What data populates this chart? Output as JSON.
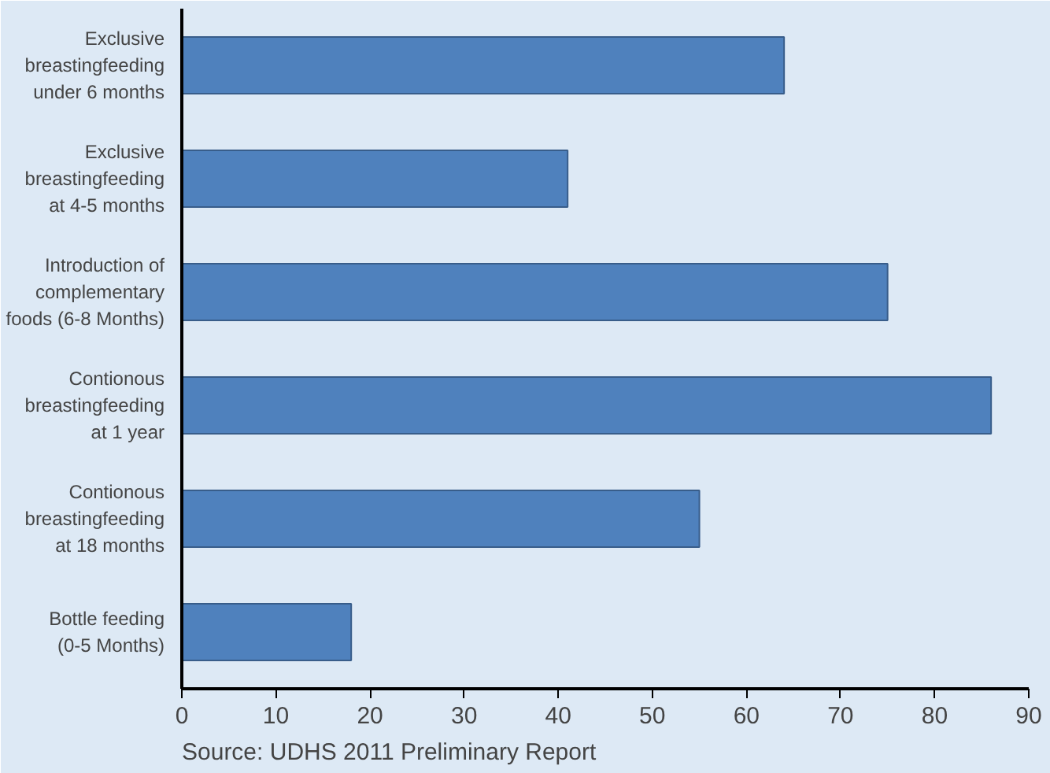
{
  "chart_data": {
    "type": "bar",
    "orientation": "horizontal",
    "categories": [
      "Exclusive\nbreastingfeeding\nunder 6 months",
      "Exclusive\nbreastingfeeding\nat 4-5 months",
      "Introduction of\ncomplementary\nfoods (6-8 Months)",
      "Contionous\nbreastingfeeding\nat 1 year",
      "Contionous\nbreastingfeeding\nat 18 months",
      "Bottle feeding\n(0-5 Months)"
    ],
    "values": [
      64,
      41,
      75,
      86,
      55,
      18
    ],
    "color": "#4f81bd",
    "xlim": [
      0,
      90
    ],
    "xticks": [
      0,
      10,
      20,
      30,
      40,
      50,
      60,
      70,
      80,
      90
    ],
    "grid": false,
    "annotations": [
      "Source: UDHS 2011 Preliminary Report"
    ]
  }
}
